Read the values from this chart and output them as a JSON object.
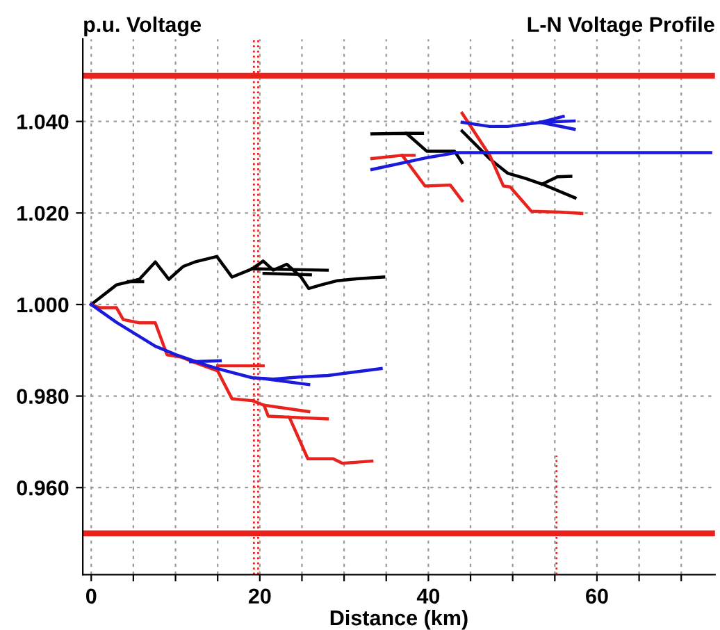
{
  "chart_data": {
    "type": "line",
    "title": "L-N Voltage Profile",
    "ylabel": "p.u. Voltage",
    "xlabel": "Distance (km)",
    "xlim": [
      -1,
      74
    ],
    "ylim": [
      0.941,
      1.058
    ],
    "xticks": [
      0,
      {
        "value": 5,
        "label": null
      },
      {
        "value": 10,
        "label": null
      },
      {
        "value": 15,
        "label": null
      },
      20,
      {
        "value": 25,
        "label": null
      },
      {
        "value": 30,
        "label": null
      },
      {
        "value": 35,
        "label": null
      },
      40,
      {
        "value": 45,
        "label": null
      },
      {
        "value": 50,
        "label": null
      },
      {
        "value": 55,
        "label": null
      },
      60,
      {
        "value": 65,
        "label": null
      },
      {
        "value": 70,
        "label": null
      }
    ],
    "yticks": [
      {
        "value": 0.96,
        "label": "0.960"
      },
      {
        "value": 0.98,
        "label": "0.980"
      },
      {
        "value": 1.0,
        "label": "1.000"
      },
      {
        "value": 1.02,
        "label": "1.020"
      },
      {
        "value": 1.04,
        "label": "1.040"
      }
    ],
    "grid": true,
    "marker": "none",
    "ref_lines": [
      {
        "axis": "y",
        "value": 1.05,
        "color": "#e8231e",
        "line_style": "solid"
      },
      {
        "axis": "y",
        "value": 0.95,
        "color": "#e8231e",
        "line_style": "solid"
      },
      {
        "axis": "x",
        "value": 19.3,
        "color": "#e8231e",
        "line_style": "dotted"
      },
      {
        "axis": "x",
        "value": 19.8,
        "color": "#e8231e",
        "line_style": "dotted"
      }
    ],
    "series": [
      {
        "color": "#000000",
        "x": [
          0,
          3.0,
          5.7,
          7.6,
          9.2,
          10.9,
          12.3,
          14.9,
          16.7,
          19.1,
          20.4,
          21.6,
          23.2,
          24.9,
          25.8,
          27.3,
          29.2,
          31.4,
          34.7
        ],
        "values": [
          1.0,
          1.0043,
          1.0055,
          1.0093,
          1.0055,
          1.0083,
          1.0093,
          1.0105,
          1.006,
          1.0078,
          1.0095,
          1.0075,
          1.0088,
          1.006,
          1.0035,
          1.0043,
          1.0052,
          1.0056,
          1.006
        ]
      },
      {
        "color": "#000000",
        "x": [
          4.4,
          6.1
        ],
        "values": [
          1.005,
          1.005
        ]
      },
      {
        "color": "#000000",
        "x": [
          19.1,
          28.0
        ],
        "values": [
          1.0078,
          1.0075
        ]
      },
      {
        "color": "#000000",
        "x": [
          20.5,
          26.0
        ],
        "values": [
          1.0068,
          1.0065
        ]
      },
      {
        "color": "#e8231e",
        "x": [
          0,
          1.0,
          3.0,
          3.8,
          5.7,
          7.6,
          9.0,
          10.7,
          12.3,
          15.0,
          16.7,
          19.1,
          20.5,
          21.0,
          23.5,
          25.7,
          28.7,
          29.8,
          33.3
        ],
        "values": [
          1.0,
          0.9993,
          0.9993,
          0.9967,
          0.996,
          0.996,
          0.989,
          0.9885,
          0.9873,
          0.9855,
          0.9794,
          0.979,
          0.978,
          0.9756,
          0.9754,
          0.9663,
          0.9663,
          0.9653,
          0.9658
        ]
      },
      {
        "color": "#e8231e",
        "x": [
          15.0,
          20.4
        ],
        "values": [
          0.9866,
          0.9866
        ]
      },
      {
        "color": "#e8231e",
        "x": [
          20.5,
          25.8
        ],
        "values": [
          0.978,
          0.9766
        ]
      },
      {
        "color": "#e8231e",
        "x": [
          23.5,
          28.0
        ],
        "values": [
          0.9754,
          0.975
        ]
      },
      {
        "color": "#1a1adc",
        "x": [
          0,
          3.0,
          7.6,
          10.1,
          13.9,
          15.6,
          19.1,
          21.6,
          24.9,
          28.1,
          31.4,
          34.4
        ],
        "values": [
          1.0,
          0.9961,
          0.9909,
          0.989,
          0.9866,
          0.9857,
          0.984,
          0.9837,
          0.9842,
          0.9845,
          0.9853,
          0.986
        ]
      },
      {
        "color": "#1a1adc",
        "x": [
          11.8,
          15.3
        ],
        "values": [
          0.9875,
          0.9877
        ]
      },
      {
        "color": "#1a1adc",
        "x": [
          20.5,
          25.8
        ],
        "values": [
          0.9838,
          0.9825
        ]
      },
      {
        "color": "#000000",
        "x": [
          33.3,
          37.4,
          39.8,
          43.1,
          44.0
        ],
        "values": [
          1.0373,
          1.0374,
          1.0335,
          1.0335,
          1.031
        ]
      },
      {
        "color": "#000000",
        "x": [
          37.4,
          39.3
        ],
        "values": [
          1.0374,
          1.0374
        ]
      },
      {
        "color": "#000000",
        "x": [
          44.0,
          47.3,
          49.4,
          51.6,
          53.5,
          57.4
        ],
        "values": [
          1.0379,
          1.0318,
          1.0287,
          1.0275,
          1.0263,
          1.0233
        ]
      },
      {
        "color": "#000000",
        "x": [
          53.5,
          55.3,
          56.9
        ],
        "values": [
          1.0263,
          1.0279,
          1.028
        ]
      },
      {
        "color": "#e8231e",
        "x": [
          33.3,
          36.9,
          39.6,
          42.6,
          44.0
        ],
        "values": [
          1.0319,
          1.0326,
          1.0259,
          1.0261,
          1.0227
        ]
      },
      {
        "color": "#e8231e",
        "x": [
          36.9,
          38.3
        ],
        "values": [
          1.0326,
          1.0326
        ]
      },
      {
        "color": "#e8231e",
        "x": [
          44.0,
          47.3,
          48.9,
          49.7,
          52.2,
          55.5,
          58.2
        ],
        "values": [
          1.0418,
          1.0325,
          1.0259,
          1.0257,
          1.0204,
          1.0202,
          1.0199
        ]
      },
      {
        "color": "#1a1adc",
        "x": [
          33.3,
          39.6,
          43.4,
          73.5
        ],
        "values": [
          1.0295,
          1.032,
          1.0332,
          1.0332
        ]
      },
      {
        "color": "#1a1adc",
        "x": [
          44.0,
          47.3,
          49.4,
          53.3,
          56.0
        ],
        "values": [
          1.0398,
          1.0389,
          1.0389,
          1.0398,
          1.0411
        ]
      },
      {
        "color": "#1a1adc",
        "x": [
          53.3,
          57.3
        ],
        "values": [
          1.0398,
          1.0401
        ]
      },
      {
        "color": "#1a1adc",
        "x": [
          53.3,
          57.3
        ],
        "values": [
          1.0398,
          1.0383
        ]
      },
      {
        "color": "#e8231e",
        "line_style": "dotted",
        "x": [
          55.2,
          55.2
        ],
        "values": [
          0.941,
          0.967
        ]
      }
    ]
  }
}
